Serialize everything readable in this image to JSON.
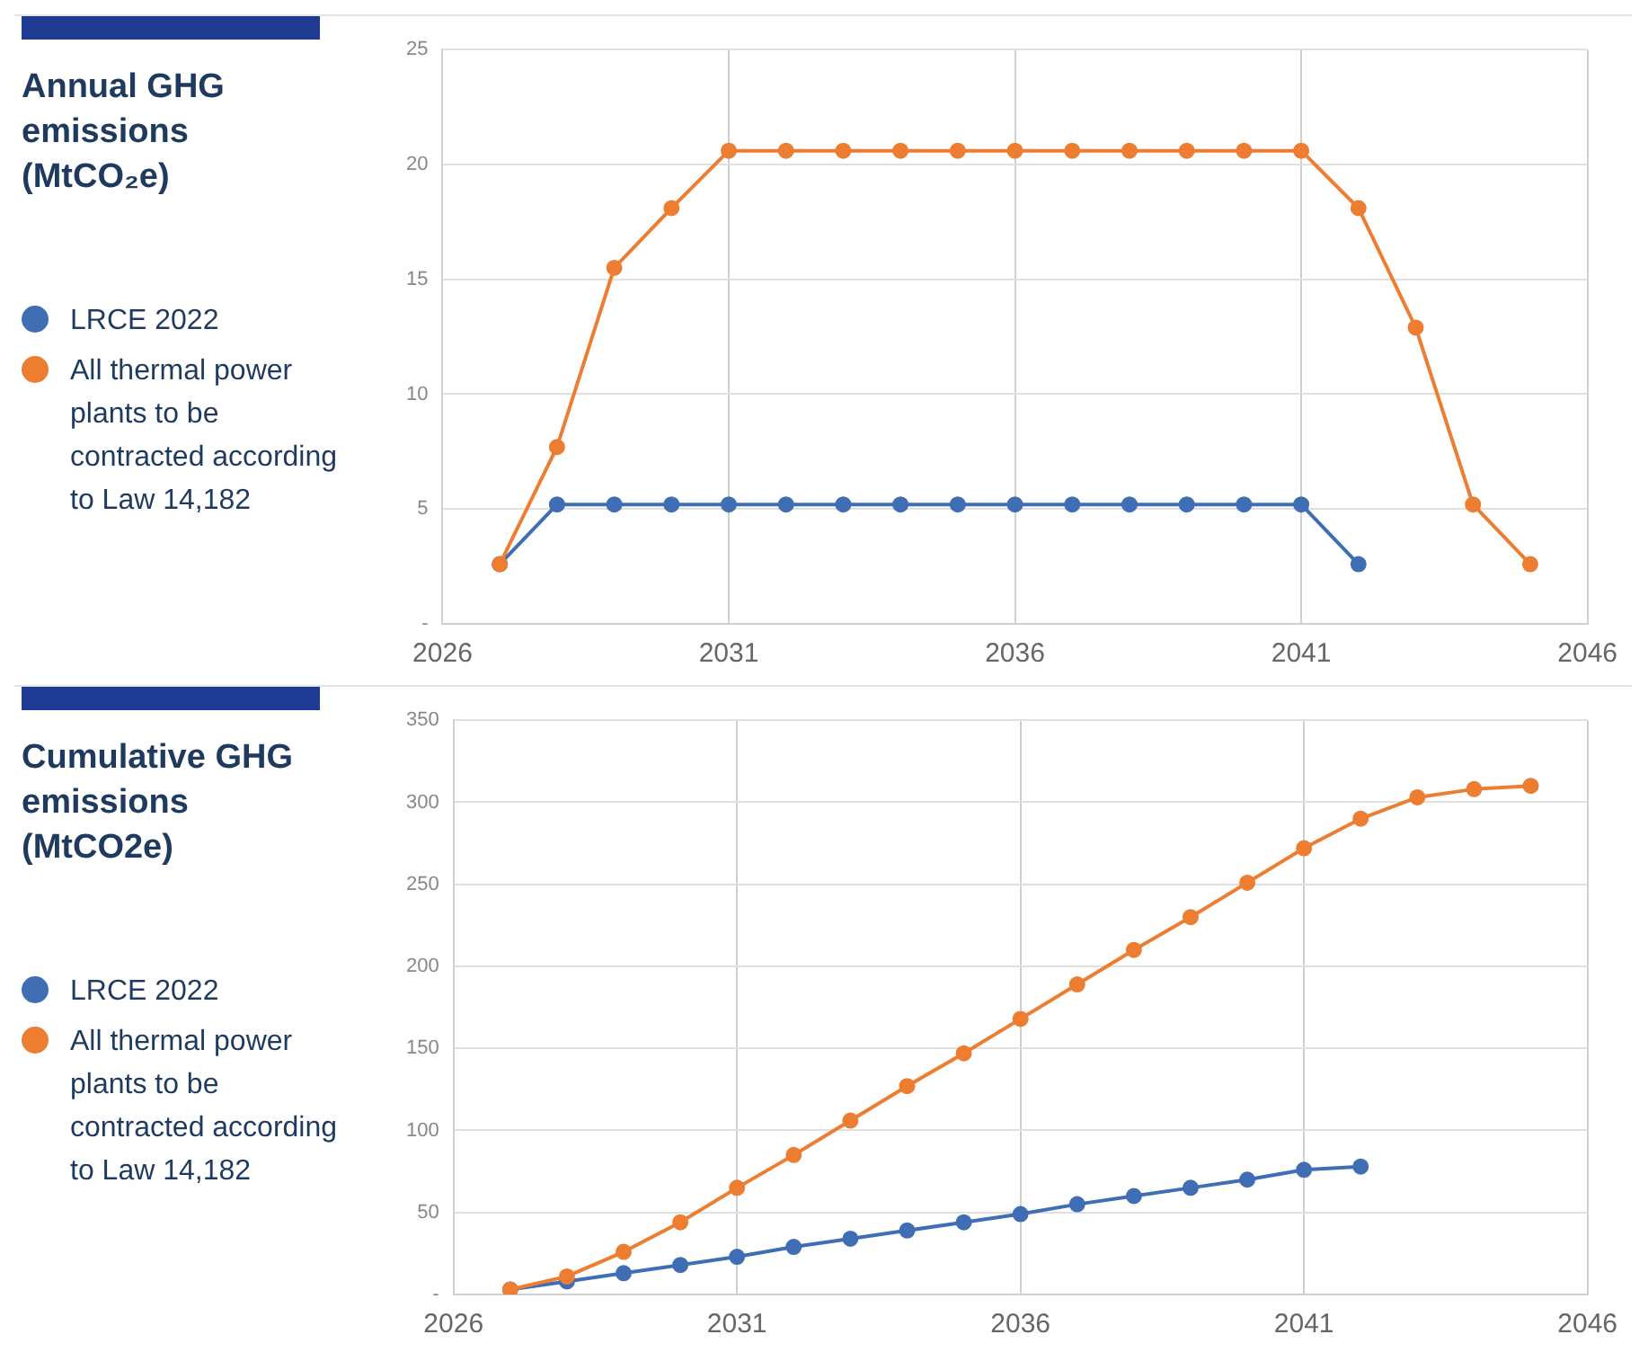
{
  "chart_data": [
    {
      "type": "line",
      "title": "Annual GHG emissions (MtCO₂e)",
      "legend": "left",
      "grid": true,
      "marker": "circle",
      "line_style": "solid",
      "xlim": [
        2026,
        2046
      ],
      "xticks": [
        2026,
        2031,
        2036,
        2041,
        2046
      ],
      "ylim": [
        0,
        25
      ],
      "yticks": [
        {
          "value": 0,
          "label": "-"
        },
        5,
        10,
        15,
        20,
        25
      ],
      "series": [
        {
          "name": "LRCE 2022",
          "color": "#3f6eb5",
          "x": [
            2027,
            2028,
            2029,
            2030,
            2031,
            2032,
            2033,
            2034,
            2035,
            2036,
            2037,
            2038,
            2039,
            2040,
            2041,
            2042
          ],
          "values": [
            2.6,
            5.2,
            5.2,
            5.2,
            5.2,
            5.2,
            5.2,
            5.2,
            5.2,
            5.2,
            5.2,
            5.2,
            5.2,
            5.2,
            5.2,
            2.6
          ]
        },
        {
          "name": "All thermal power plants to be contracted according to Law 14,182",
          "color": "#ed7d31",
          "x": [
            2027,
            2028,
            2029,
            2030,
            2031,
            2032,
            2033,
            2034,
            2035,
            2036,
            2037,
            2038,
            2039,
            2040,
            2041,
            2042,
            2043,
            2044,
            2045
          ],
          "values": [
            2.6,
            7.7,
            15.5,
            18.1,
            20.6,
            20.6,
            20.6,
            20.6,
            20.6,
            20.6,
            20.6,
            20.6,
            20.6,
            20.6,
            20.6,
            18.1,
            12.9,
            5.2,
            2.6
          ]
        }
      ]
    },
    {
      "type": "line",
      "title": "Cumulative GHG emissions (MtCO2e)",
      "legend": "left",
      "grid": true,
      "marker": "circle",
      "line_style": "solid",
      "xlim": [
        2026,
        2046
      ],
      "xticks": [
        2026,
        2031,
        2036,
        2041,
        2046
      ],
      "ylim": [
        0,
        350
      ],
      "yticks": [
        {
          "value": 0,
          "label": "-"
        },
        50,
        100,
        150,
        200,
        250,
        300,
        350
      ],
      "series": [
        {
          "name": "LRCE 2022",
          "color": "#3f6eb5",
          "x": [
            2027,
            2028,
            2029,
            2030,
            2031,
            2032,
            2033,
            2034,
            2035,
            2036,
            2037,
            2038,
            2039,
            2040,
            2041,
            2042
          ],
          "values": [
            3,
            8,
            13,
            18,
            23,
            29,
            34,
            39,
            44,
            49,
            55,
            60,
            65,
            70,
            76,
            78
          ]
        },
        {
          "name": "All thermal power plants to be contracted according to Law 14,182",
          "color": "#ed7d31",
          "x": [
            2027,
            2028,
            2029,
            2030,
            2031,
            2032,
            2033,
            2034,
            2035,
            2036,
            2037,
            2038,
            2039,
            2040,
            2041,
            2042,
            2043,
            2044,
            2045
          ],
          "values": [
            3,
            11,
            26,
            44,
            65,
            85,
            106,
            127,
            147,
            168,
            189,
            210,
            230,
            251,
            272,
            290,
            303,
            308,
            310
          ]
        }
      ]
    }
  ]
}
